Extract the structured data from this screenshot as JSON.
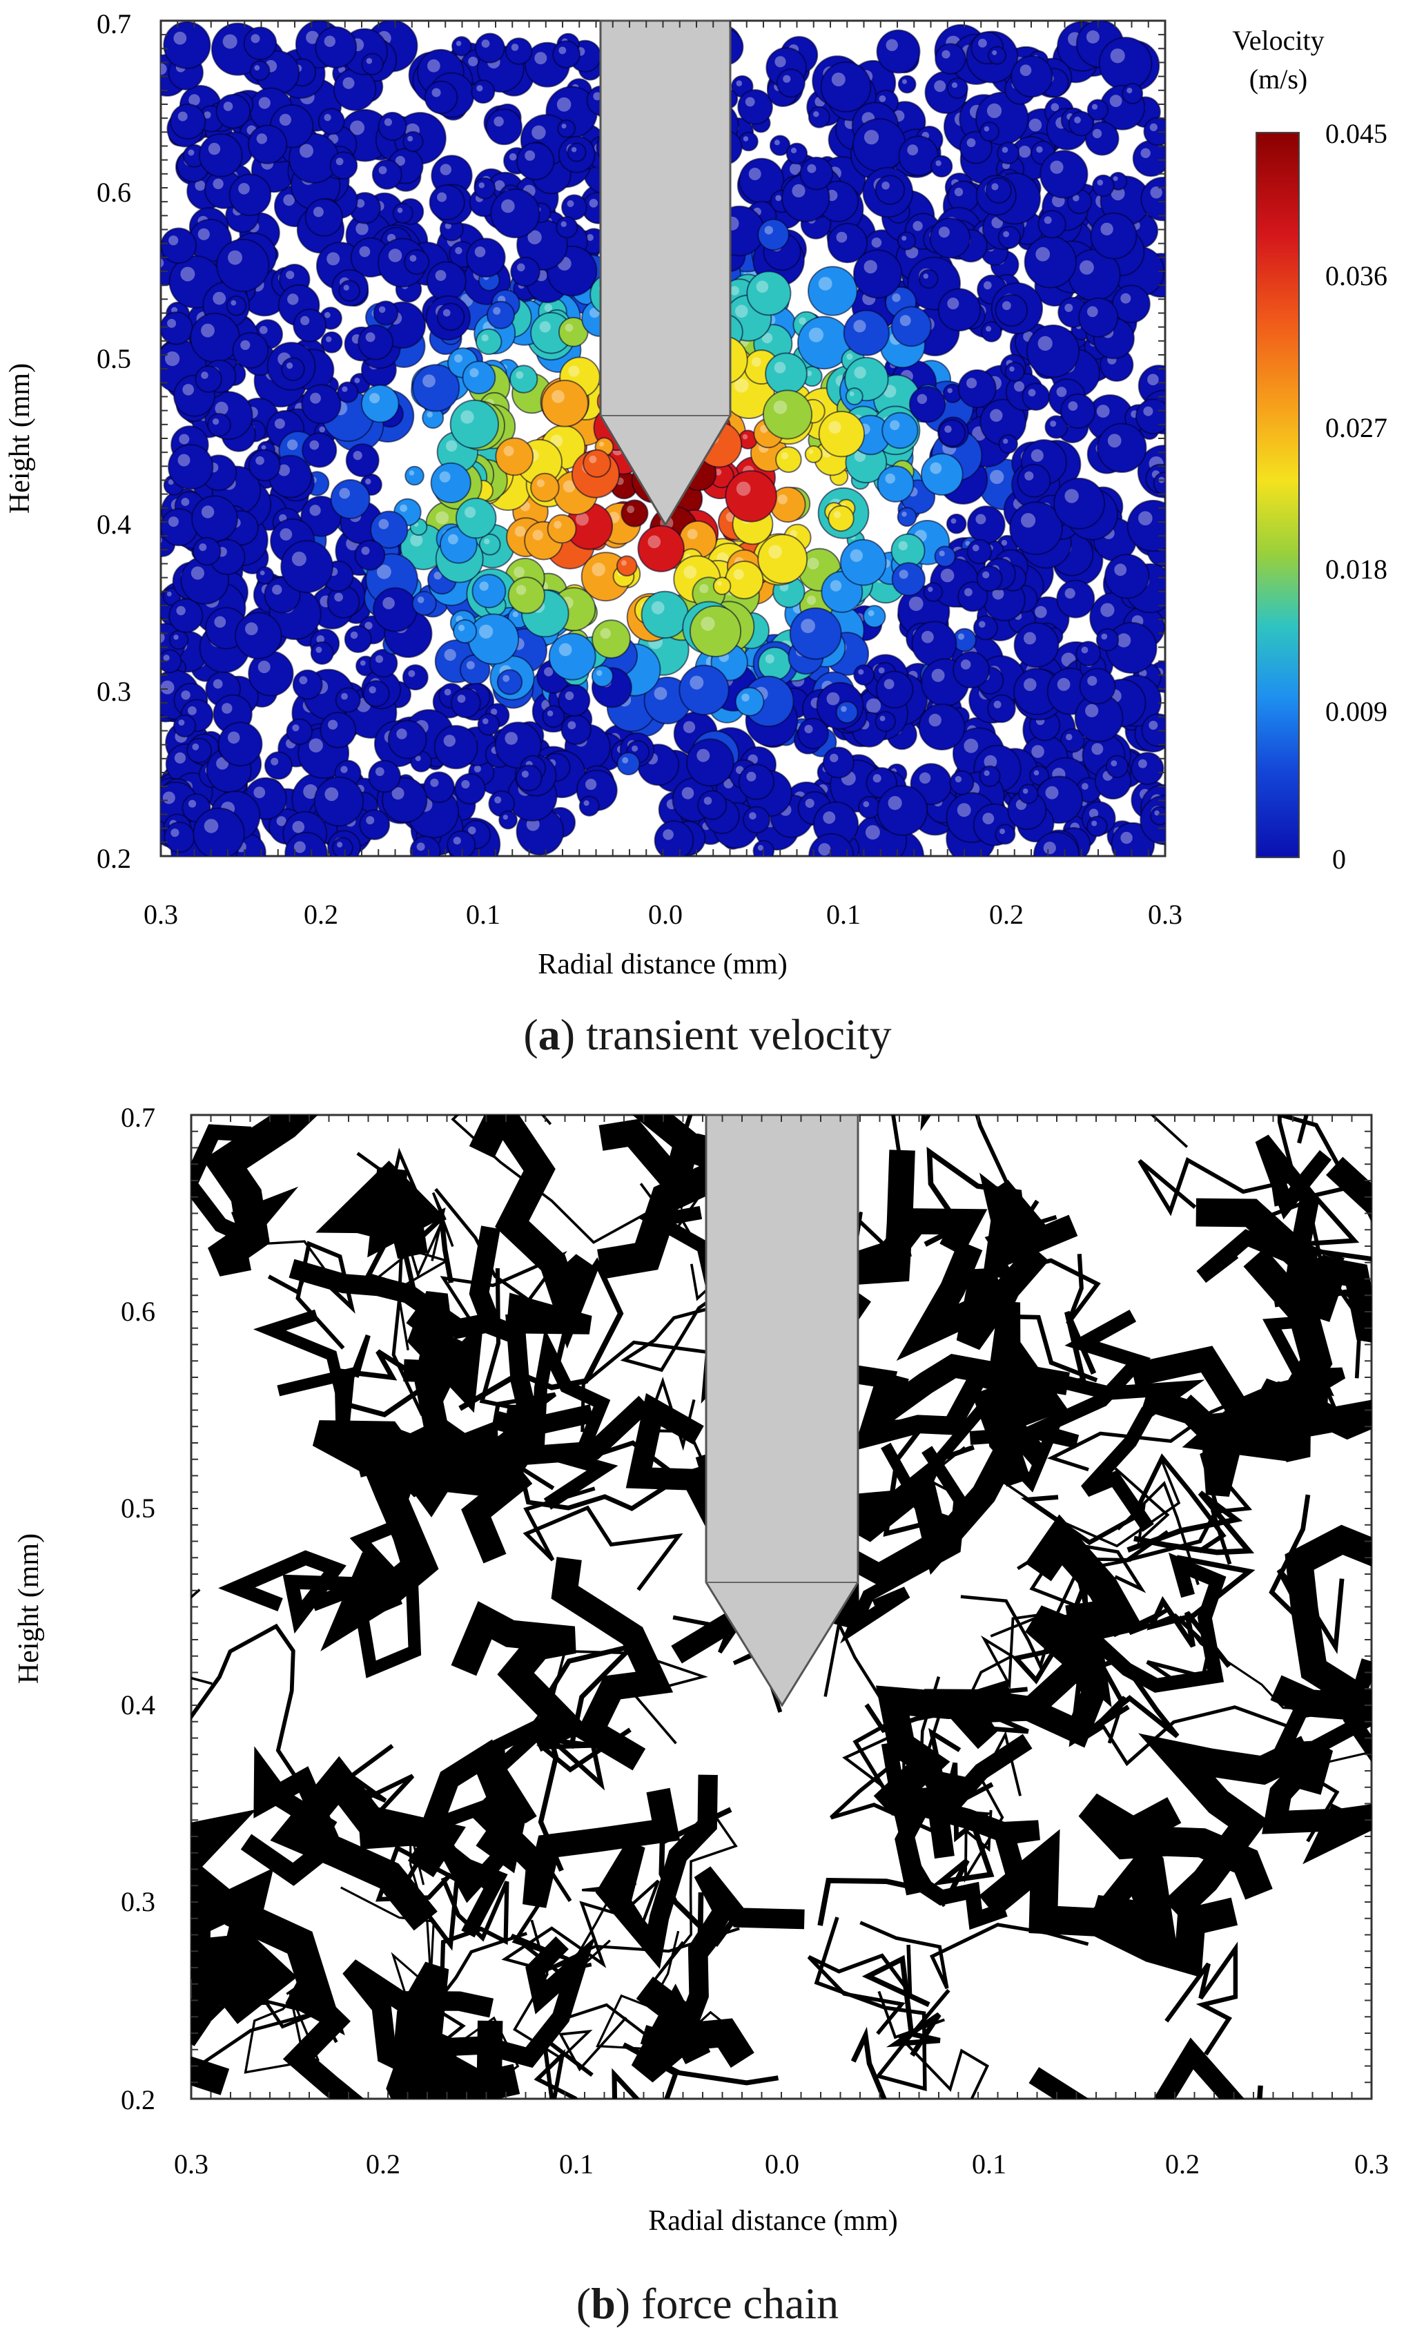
{
  "panel_a": {
    "caption_letter": "a",
    "caption_text": "transient velocity",
    "y_axis_label": "Height (mm)",
    "x_axis_label": "Radial distance (mm)",
    "y_ticks": [
      "0.2",
      "0.3",
      "0.4",
      "0.5",
      "0.6",
      "0.7"
    ],
    "x_ticks": [
      "0.3",
      "0.2",
      "0.1",
      "0.0",
      "0.1",
      "0.2",
      "0.3"
    ],
    "colorbar": {
      "title_line1": "Velocity",
      "title_line2": "(m/s)",
      "ticks": [
        "0.045",
        "0.036",
        "0.027",
        "0.018",
        "0.009",
        "0"
      ],
      "colors": [
        "#8b0000",
        "#d4161b",
        "#f05a1a",
        "#f7a21b",
        "#f4e21e",
        "#9ad03a",
        "#2fc4c0",
        "#1e8ff0",
        "#1446d8",
        "#0a0fb0"
      ]
    }
  },
  "panel_b": {
    "caption_letter": "b",
    "caption_text": "force chain",
    "y_axis_label": "Height (mm)",
    "x_axis_label": "Radial distance (mm)",
    "y_ticks": [
      "0.2",
      "0.3",
      "0.4",
      "0.5",
      "0.6",
      "0.7"
    ],
    "x_ticks": [
      "0.3",
      "0.2",
      "0.1",
      "0.0",
      "0.1",
      "0.2",
      "0.3"
    ]
  },
  "colors": {
    "indenter": "#c8c8c8",
    "particle_bg": "#0a0fa8",
    "force_chain": "#000000"
  }
}
